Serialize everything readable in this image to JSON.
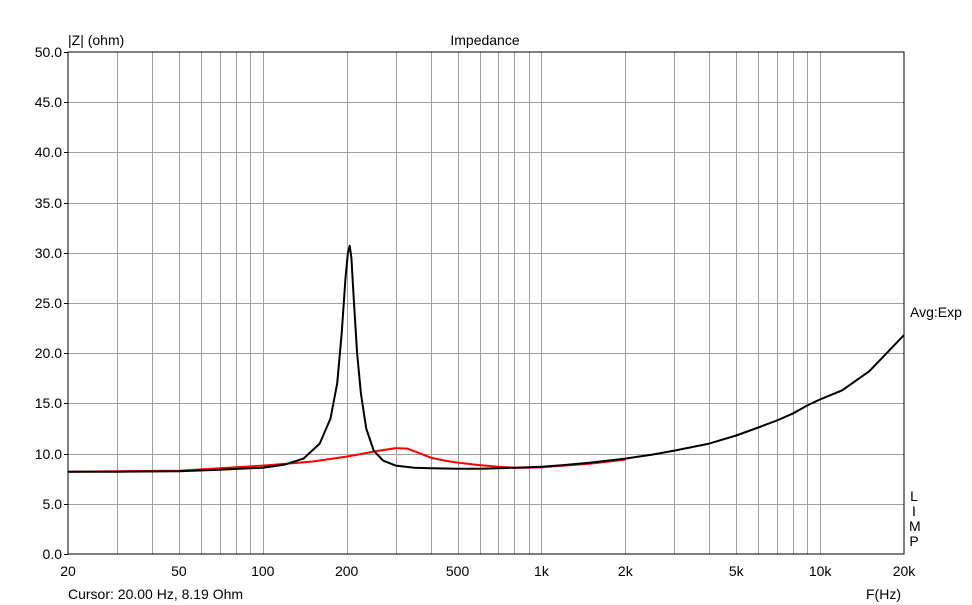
{
  "chart_data": {
    "type": "line",
    "title": "Impedance",
    "ylabel": "|Z| (ohm)",
    "xlabel": "F(Hz)",
    "xscale": "log",
    "xlim": [
      20,
      20000
    ],
    "ylim": [
      0,
      50
    ],
    "grid": true,
    "y_ticks": [
      "50.0",
      "45.0",
      "40.0",
      "35.0",
      "30.0",
      "25.0",
      "20.0",
      "15.0",
      "10.0",
      "5.0",
      "0.0"
    ],
    "y_tick_values": [
      50,
      45,
      40,
      35,
      30,
      25,
      20,
      15,
      10,
      5,
      0
    ],
    "x_tick_labels": [
      {
        "v": 20,
        "label": "20"
      },
      {
        "v": 50,
        "label": "50"
      },
      {
        "v": 100,
        "label": "100"
      },
      {
        "v": 200,
        "label": "200"
      },
      {
        "v": 500,
        "label": "500"
      },
      {
        "v": 1000,
        "label": "1k"
      },
      {
        "v": 2000,
        "label": "2k"
      },
      {
        "v": 5000,
        "label": "5k"
      },
      {
        "v": 10000,
        "label": "10k"
      },
      {
        "v": 20000,
        "label": "20k"
      }
    ],
    "series": [
      {
        "color": "#ff0000",
        "x": [
          20,
          50,
          100,
          150,
          200,
          250,
          300,
          330,
          360,
          400,
          450,
          500,
          600,
          700,
          800,
          900,
          1000,
          1200,
          1500,
          2000
        ],
        "y": [
          8.2,
          8.3,
          8.8,
          9.2,
          9.7,
          10.2,
          10.55,
          10.5,
          10.1,
          9.6,
          9.3,
          9.1,
          8.85,
          8.7,
          8.6,
          8.6,
          8.65,
          8.8,
          9.0,
          9.4
        ]
      },
      {
        "color": "#000000",
        "x": [
          20,
          30,
          50,
          70,
          100,
          120,
          140,
          160,
          175,
          185,
          192,
          198,
          202,
          205,
          208,
          212,
          218,
          225,
          235,
          250,
          270,
          300,
          350,
          400,
          500,
          600,
          700,
          800,
          1000,
          1200,
          1500,
          2000,
          2500,
          3000,
          4000,
          5000,
          6000,
          7000,
          8000,
          9000,
          10000,
          12000,
          15000,
          20000
        ],
        "y": [
          8.19,
          8.2,
          8.25,
          8.4,
          8.6,
          8.9,
          9.5,
          11.0,
          13.5,
          17.0,
          22.0,
          27.5,
          30.0,
          30.7,
          29.5,
          25.5,
          20.0,
          16.0,
          12.5,
          10.3,
          9.3,
          8.8,
          8.6,
          8.55,
          8.5,
          8.5,
          8.55,
          8.6,
          8.7,
          8.85,
          9.1,
          9.5,
          9.9,
          10.3,
          11.0,
          11.8,
          12.6,
          13.3,
          14.0,
          14.8,
          15.4,
          16.3,
          18.2,
          21.8
        ]
      }
    ]
  },
  "side_label": "Avg:Exp",
  "limp_letters": [
    "L",
    "I",
    "M",
    "P"
  ],
  "cursor_text": "Cursor: 20.00 Hz, 8.19 Ohm"
}
